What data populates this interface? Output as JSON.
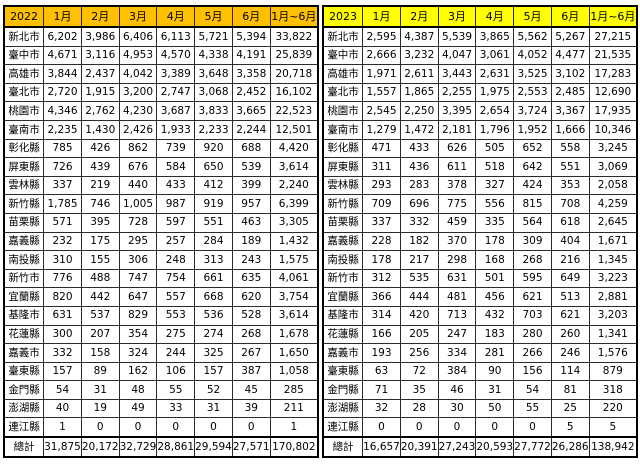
{
  "colors": {
    "header_2022_bg": "#FFC000",
    "header_2023_bg": "#FFFF00",
    "cell_bg": "#FFFFFF",
    "border": "#000000",
    "text": "#000000"
  },
  "tables": [
    {
      "year_label": "2022",
      "header_bg": "#FFC000",
      "column_headers": [
        "1月",
        "2月",
        "3月",
        "4月",
        "5月",
        "6月",
        "1月~6月"
      ],
      "rows": [
        {
          "label": "新北市",
          "values": [
            "6,202",
            "3,986",
            "6,406",
            "6,113",
            "5,721",
            "5,394",
            "33,822"
          ]
        },
        {
          "label": "臺中市",
          "values": [
            "4,671",
            "3,116",
            "4,953",
            "4,570",
            "4,338",
            "4,191",
            "25,839"
          ]
        },
        {
          "label": "高雄市",
          "values": [
            "3,844",
            "2,437",
            "4,042",
            "3,389",
            "3,648",
            "3,358",
            "20,718"
          ]
        },
        {
          "label": "臺北市",
          "values": [
            "2,720",
            "1,915",
            "3,200",
            "2,747",
            "3,068",
            "2,452",
            "16,102"
          ]
        },
        {
          "label": "桃園市",
          "values": [
            "4,346",
            "2,762",
            "4,230",
            "3,687",
            "3,833",
            "3,665",
            "22,523"
          ]
        },
        {
          "label": "臺南市",
          "values": [
            "2,235",
            "1,430",
            "2,426",
            "1,933",
            "2,233",
            "2,244",
            "12,501"
          ]
        },
        {
          "label": "彰化縣",
          "values": [
            "785",
            "426",
            "862",
            "739",
            "920",
            "688",
            "4,420"
          ]
        },
        {
          "label": "屏東縣",
          "values": [
            "726",
            "439",
            "676",
            "584",
            "650",
            "539",
            "3,614"
          ]
        },
        {
          "label": "雲林縣",
          "values": [
            "337",
            "219",
            "440",
            "433",
            "412",
            "399",
            "2,240"
          ]
        },
        {
          "label": "新竹縣",
          "values": [
            "1,785",
            "746",
            "1,005",
            "987",
            "919",
            "957",
            "6,399"
          ]
        },
        {
          "label": "苗栗縣",
          "values": [
            "571",
            "395",
            "728",
            "597",
            "551",
            "463",
            "3,305"
          ]
        },
        {
          "label": "嘉義縣",
          "values": [
            "232",
            "175",
            "295",
            "257",
            "284",
            "189",
            "1,432"
          ]
        },
        {
          "label": "南投縣",
          "values": [
            "310",
            "155",
            "306",
            "248",
            "313",
            "243",
            "1,575"
          ]
        },
        {
          "label": "新竹市",
          "values": [
            "776",
            "488",
            "747",
            "754",
            "661",
            "635",
            "4,061"
          ]
        },
        {
          "label": "宜蘭縣",
          "values": [
            "820",
            "442",
            "647",
            "557",
            "668",
            "620",
            "3,754"
          ]
        },
        {
          "label": "基隆市",
          "values": [
            "631",
            "537",
            "829",
            "553",
            "536",
            "528",
            "3,614"
          ]
        },
        {
          "label": "花蓮縣",
          "values": [
            "300",
            "207",
            "354",
            "275",
            "274",
            "268",
            "1,678"
          ]
        },
        {
          "label": "嘉義市",
          "values": [
            "332",
            "158",
            "324",
            "244",
            "325",
            "267",
            "1,650"
          ]
        },
        {
          "label": "臺東縣",
          "values": [
            "157",
            "89",
            "162",
            "106",
            "157",
            "387",
            "1,058"
          ]
        },
        {
          "label": "金門縣",
          "values": [
            "54",
            "31",
            "48",
            "55",
            "52",
            "45",
            "285"
          ]
        },
        {
          "label": "澎湖縣",
          "values": [
            "40",
            "19",
            "49",
            "33",
            "31",
            "39",
            "211"
          ]
        },
        {
          "label": "連江縣",
          "values": [
            "1",
            "0",
            "0",
            "0",
            "0",
            "0",
            "1"
          ]
        }
      ],
      "total_row": {
        "label": "總計",
        "values": [
          "31,875",
          "20,172",
          "32,729",
          "28,861",
          "29,594",
          "27,571",
          "170,802"
        ]
      }
    },
    {
      "year_label": "2023",
      "header_bg": "#FFFF00",
      "column_headers": [
        "1月",
        "2月",
        "3月",
        "4月",
        "5月",
        "6月",
        "1月~6月"
      ],
      "rows": [
        {
          "label": "新北市",
          "values": [
            "2,595",
            "4,387",
            "5,539",
            "3,865",
            "5,562",
            "5,267",
            "27,215"
          ]
        },
        {
          "label": "臺中市",
          "values": [
            "2,666",
            "3,232",
            "4,047",
            "3,061",
            "4,052",
            "4,477",
            "21,535"
          ]
        },
        {
          "label": "高雄市",
          "values": [
            "1,971",
            "2,611",
            "3,443",
            "2,631",
            "3,525",
            "3,102",
            "17,283"
          ]
        },
        {
          "label": "臺北市",
          "values": [
            "1,557",
            "1,865",
            "2,255",
            "1,975",
            "2,553",
            "2,485",
            "12,690"
          ]
        },
        {
          "label": "桃園市",
          "values": [
            "2,545",
            "2,250",
            "3,395",
            "2,654",
            "3,724",
            "3,367",
            "17,935"
          ]
        },
        {
          "label": "臺南市",
          "values": [
            "1,279",
            "1,472",
            "2,181",
            "1,796",
            "1,952",
            "1,666",
            "10,346"
          ]
        },
        {
          "label": "彰化縣",
          "values": [
            "471",
            "433",
            "626",
            "505",
            "652",
            "558",
            "3,245"
          ]
        },
        {
          "label": "屏東縣",
          "values": [
            "311",
            "436",
            "611",
            "518",
            "642",
            "551",
            "3,069"
          ]
        },
        {
          "label": "雲林縣",
          "values": [
            "293",
            "283",
            "378",
            "327",
            "424",
            "353",
            "2,058"
          ]
        },
        {
          "label": "新竹縣",
          "values": [
            "709",
            "696",
            "775",
            "556",
            "815",
            "708",
            "4,259"
          ]
        },
        {
          "label": "苗栗縣",
          "values": [
            "337",
            "332",
            "459",
            "335",
            "564",
            "618",
            "2,645"
          ]
        },
        {
          "label": "嘉義縣",
          "values": [
            "228",
            "182",
            "370",
            "178",
            "309",
            "404",
            "1,671"
          ]
        },
        {
          "label": "南投縣",
          "values": [
            "178",
            "217",
            "298",
            "168",
            "268",
            "216",
            "1,345"
          ]
        },
        {
          "label": "新竹市",
          "values": [
            "312",
            "535",
            "631",
            "501",
            "595",
            "649",
            "3,223"
          ]
        },
        {
          "label": "宜蘭縣",
          "values": [
            "366",
            "444",
            "481",
            "456",
            "621",
            "513",
            "2,881"
          ]
        },
        {
          "label": "基隆市",
          "values": [
            "314",
            "420",
            "713",
            "432",
            "703",
            "621",
            "3,203"
          ]
        },
        {
          "label": "花蓮縣",
          "values": [
            "166",
            "205",
            "247",
            "183",
            "280",
            "260",
            "1,341"
          ]
        },
        {
          "label": "嘉義市",
          "values": [
            "193",
            "256",
            "334",
            "281",
            "266",
            "246",
            "1,576"
          ]
        },
        {
          "label": "臺東縣",
          "values": [
            "63",
            "72",
            "384",
            "90",
            "156",
            "114",
            "879"
          ]
        },
        {
          "label": "金門縣",
          "values": [
            "71",
            "35",
            "46",
            "31",
            "54",
            "81",
            "318"
          ]
        },
        {
          "label": "澎湖縣",
          "values": [
            "32",
            "28",
            "30",
            "50",
            "55",
            "25",
            "220"
          ]
        },
        {
          "label": "連江縣",
          "values": [
            "0",
            "0",
            "0",
            "0",
            "0",
            "5",
            "5"
          ]
        }
      ],
      "total_row": {
        "label": "總計",
        "values": [
          "16,657",
          "20,391",
          "27,243",
          "20,593",
          "27,772",
          "26,286",
          "138,942"
        ]
      }
    }
  ]
}
